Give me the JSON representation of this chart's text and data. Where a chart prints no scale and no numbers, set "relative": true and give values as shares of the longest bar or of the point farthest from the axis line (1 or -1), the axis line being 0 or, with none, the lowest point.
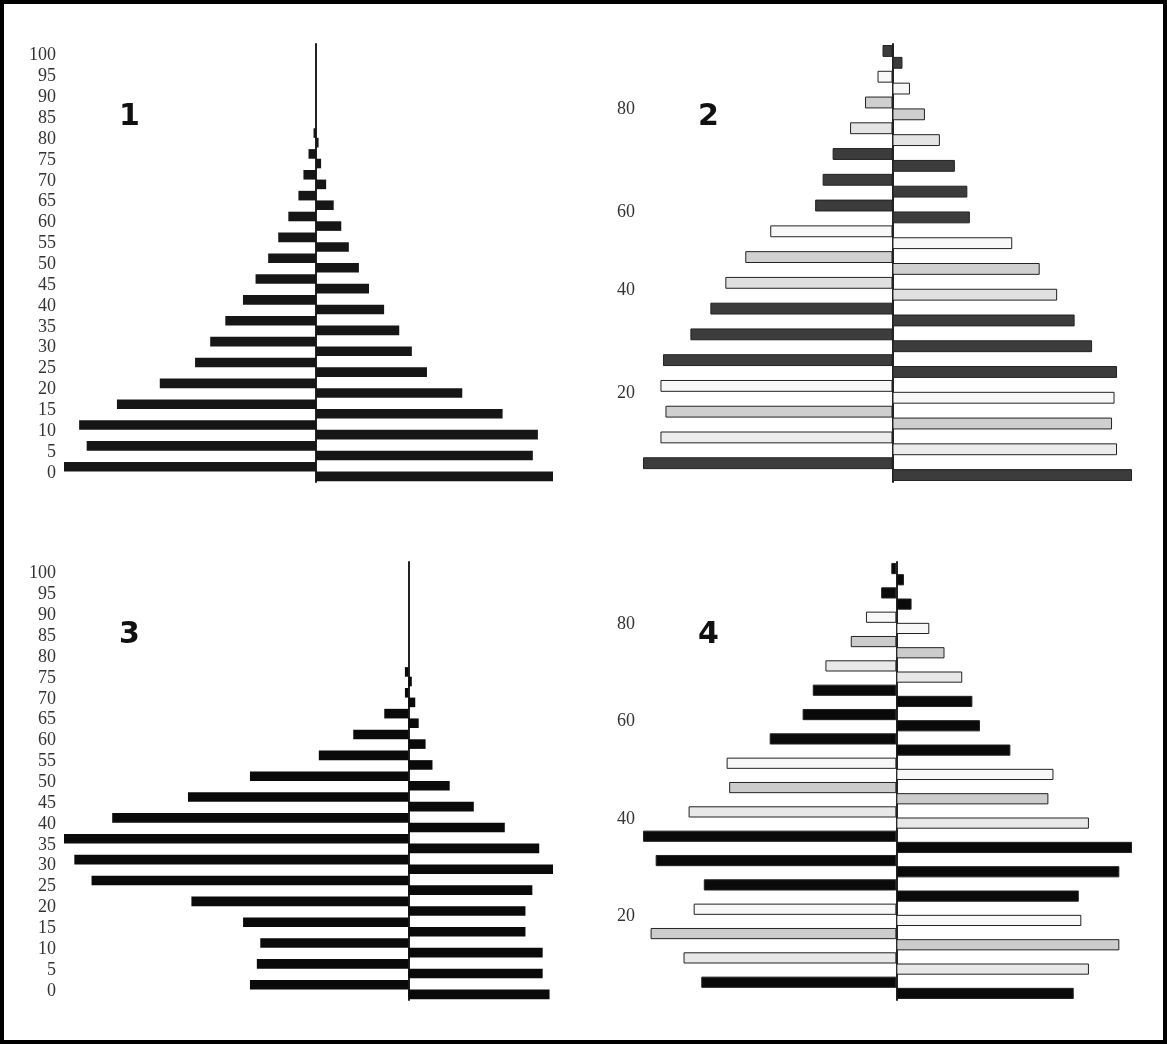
{
  "chart_data": [
    {
      "type": "bar",
      "title": "1",
      "orientation": "horizontal",
      "relative": true,
      "categories": [
        "100",
        "95",
        "90",
        "85",
        "80",
        "75",
        "70",
        "65",
        "60",
        "55",
        "50",
        "45",
        "40",
        "35",
        "30",
        "25",
        "20",
        "15",
        "10",
        "5",
        "0"
      ],
      "series": [
        {
          "color": "#161616",
          "values": [
            null,
            null,
            null,
            null,
            -0.01,
            -0.03,
            -0.05,
            -0.07,
            -0.11,
            -0.15,
            -0.19,
            -0.24,
            -0.29,
            -0.36,
            -0.42,
            -0.48,
            -0.62,
            -0.79,
            -0.94,
            -0.91,
            -1
          ]
        },
        {
          "color": "#161616",
          "values": [
            null,
            null,
            null,
            null,
            0.01,
            0.02,
            0.04,
            0.07,
            0.1,
            0.13,
            0.17,
            0.21,
            0.27,
            0.33,
            0.38,
            0.44,
            0.58,
            0.74,
            0.88,
            0.86,
            0.94
          ]
        }
      ]
    },
    {
      "type": "bar",
      "title": "2",
      "orientation": "horizontal",
      "relative": true,
      "categories": [
        null,
        null,
        "80",
        null,
        null,
        null,
        "60",
        null,
        null,
        "40",
        null,
        null,
        null,
        "20",
        null,
        null,
        null
      ],
      "series": [
        {
          "colors": [
            "#3c3c3c",
            "#f8f8f8",
            "#cfcfcf",
            "#e4e4e4",
            "#3c3c3c",
            "#3c3c3c",
            "#3c3c3c",
            "#f8f8f8",
            "#d0d0d0",
            "#e0e0e0",
            "#3c3c3c",
            "#3c3c3c",
            "#3c3c3c",
            "#f8f8f8",
            "#cfcfcf",
            "#ececec",
            "#3c3c3c"
          ],
          "values": [
            -0.04,
            -0.06,
            -0.11,
            -0.17,
            -0.24,
            -0.28,
            -0.31,
            -0.49,
            -0.59,
            -0.67,
            -0.73,
            -0.81,
            -0.92,
            -0.93,
            -0.91,
            -0.93,
            -1
          ]
        },
        {
          "colors": [
            "#3c3c3c",
            "#f8f8f8",
            "#cfcfcf",
            "#e4e4e4",
            "#3c3c3c",
            "#3c3c3c",
            "#3c3c3c",
            "#f8f8f8",
            "#d0d0d0",
            "#e0e0e0",
            "#3c3c3c",
            "#3c3c3c",
            "#3c3c3c",
            "#f8f8f8",
            "#cfcfcf",
            "#ececec",
            "#3c3c3c"
          ],
          "values": [
            0.04,
            0.07,
            0.13,
            0.19,
            0.25,
            0.3,
            0.31,
            0.48,
            0.59,
            0.66,
            0.73,
            0.8,
            0.9,
            0.89,
            0.88,
            0.9,
            0.96
          ]
        }
      ]
    },
    {
      "type": "bar",
      "title": "3",
      "orientation": "horizontal",
      "relative": true,
      "categories": [
        "100",
        "95",
        "90",
        "85",
        "80",
        "75",
        "70",
        "65",
        "60",
        "55",
        "50",
        "45",
        "40",
        "35",
        "30",
        "25",
        "20",
        "15",
        "10",
        "5",
        "0"
      ],
      "series": [
        {
          "color": "#0a0a0a",
          "values": [
            null,
            null,
            null,
            null,
            null,
            -0.01,
            -0.01,
            -0.07,
            -0.16,
            -0.26,
            -0.46,
            -0.64,
            -0.86,
            -1,
            -0.97,
            -0.92,
            -0.63,
            -0.48,
            -0.43,
            -0.44,
            -0.46
          ]
        },
        {
          "color": "#0a0a0a",
          "values": [
            null,
            null,
            null,
            null,
            null,
            0.01,
            0.02,
            0.03,
            0.05,
            0.07,
            0.12,
            0.19,
            0.28,
            0.38,
            0.42,
            0.36,
            0.34,
            0.34,
            0.39,
            0.39,
            0.41
          ]
        }
      ]
    },
    {
      "type": "bar",
      "title": "4",
      "orientation": "horizontal",
      "relative": true,
      "categories": [
        null,
        null,
        "80",
        null,
        null,
        null,
        "60",
        null,
        null,
        null,
        "40",
        null,
        null,
        null,
        "20",
        null,
        null,
        null
      ],
      "series": [
        {
          "colors": [
            "#0a0a0a",
            "#0a0a0a",
            "#f8f8f8",
            "#cccccc",
            "#e8e8e8",
            "#0a0a0a",
            "#0a0a0a",
            "#0a0a0a",
            "#f8f8f8",
            "#cccccc",
            "#e8e8e8",
            "#0a0a0a",
            "#0a0a0a",
            "#0a0a0a",
            "#f8f8f8",
            "#cccccc",
            "#e8e8e8",
            "#0a0a0a"
          ],
          "values": [
            -0.02,
            -0.06,
            -0.12,
            -0.18,
            -0.28,
            -0.33,
            -0.37,
            -0.5,
            -0.67,
            -0.66,
            -0.82,
            -1,
            -0.95,
            -0.76,
            -0.8,
            -0.97,
            -0.84,
            -0.77
          ]
        },
        {
          "colors": [
            "#0a0a0a",
            "#0a0a0a",
            "#f8f8f8",
            "#cccccc",
            "#e8e8e8",
            "#0a0a0a",
            "#0a0a0a",
            "#0a0a0a",
            "#f8f8f8",
            "#cccccc",
            "#e8e8e8",
            "#0a0a0a",
            "#0a0a0a",
            "#0a0a0a",
            "#f8f8f8",
            "#cccccc",
            "#e8e8e8",
            "#0a0a0a"
          ],
          "values": [
            0.03,
            0.06,
            0.13,
            0.19,
            0.26,
            0.3,
            0.33,
            0.45,
            0.62,
            0.6,
            0.76,
            0.93,
            0.88,
            0.72,
            0.73,
            0.88,
            0.76,
            0.7
          ]
        }
      ]
    }
  ]
}
